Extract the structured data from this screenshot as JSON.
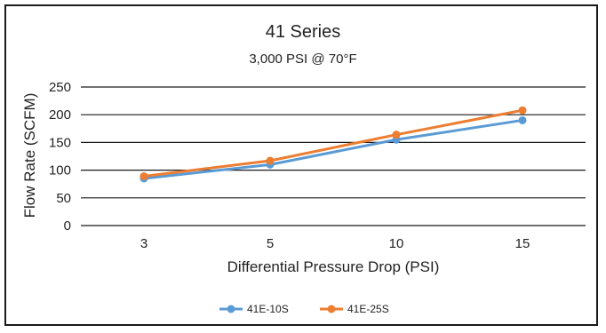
{
  "chart_data": {
    "type": "line",
    "title": "41 Series",
    "subtitle": "3,000 PSI @ 70°F",
    "xlabel": "Differential Pressure Drop (PSI)",
    "ylabel": "Flow Rate (SCFM)",
    "categories": [
      "3",
      "5",
      "10",
      "15"
    ],
    "ylim": [
      0,
      250
    ],
    "yticks": [
      0,
      50,
      100,
      150,
      200,
      250
    ],
    "grid": true,
    "legend_position": "bottom",
    "series": [
      {
        "name": "41E-10S",
        "color": "#5B9BD5",
        "values": [
          85,
          110,
          155,
          190
        ]
      },
      {
        "name": "41E-25S",
        "color": "#ED7D31",
        "values": [
          89,
          117,
          164,
          208
        ]
      }
    ]
  }
}
